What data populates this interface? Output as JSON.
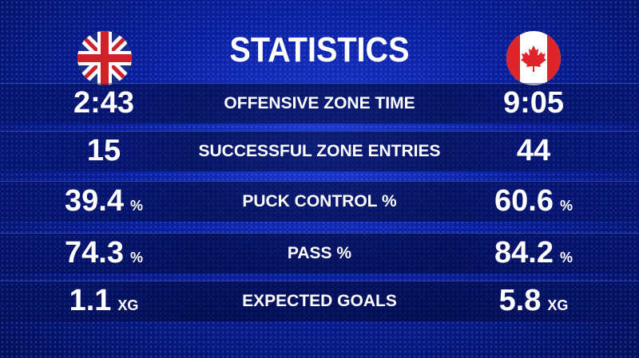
{
  "title": "STATISTICS",
  "rows": [
    {
      "left": {
        "value": "2:43"
      },
      "label": "OFFENSIVE ZONE TIME",
      "right": {
        "value": "9:05"
      }
    },
    {
      "left": {
        "value": "15"
      },
      "label": "SUCCESSFUL ZONE ENTRIES",
      "right": {
        "value": "44"
      }
    },
    {
      "left": {
        "value": "39.4",
        "unit": "%"
      },
      "label": "PUCK CONTROL %",
      "right": {
        "value": "60.6",
        "unit": "%"
      }
    },
    {
      "left": {
        "value": "74.3",
        "unit": "%"
      },
      "label": "PASS %",
      "right": {
        "value": "84.2",
        "unit": "%"
      }
    },
    {
      "left": {
        "value": "1.1",
        "unit": "XG"
      },
      "label": "EXPECTED GOALS",
      "right": {
        "value": "5.8",
        "unit": "XG"
      }
    }
  ]
}
